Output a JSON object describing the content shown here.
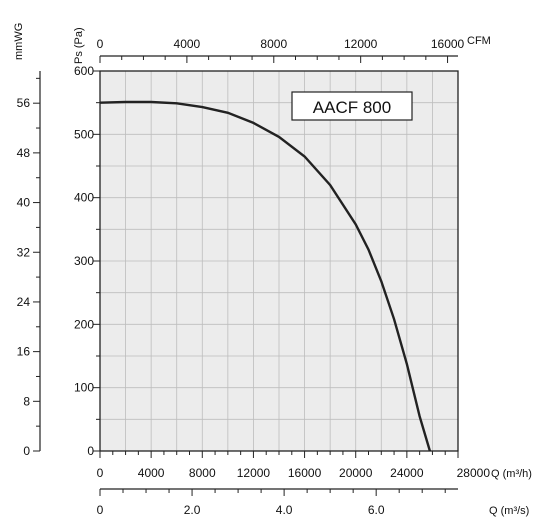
{
  "chart_data": {
    "type": "line",
    "model_label": "AACF 800",
    "series": [
      {
        "x": [
          0,
          2000,
          4000,
          6000,
          8000,
          10000,
          12000,
          14000,
          16000,
          18000,
          20000,
          21000,
          22000,
          23000,
          24000,
          25000,
          25800
        ],
        "y": [
          550,
          551,
          551,
          549,
          543,
          534,
          518,
          496,
          465,
          420,
          358,
          318,
          268,
          208,
          137,
          55,
          0
        ]
      }
    ],
    "x_axis": {
      "label": "Q (m³/h)",
      "range": [
        0,
        28000
      ],
      "ticks": [
        0,
        4000,
        8000,
        12000,
        16000,
        20000,
        24000,
        28000
      ]
    },
    "y_axis": {
      "label": "Ps (Pa)",
      "range": [
        0,
        600
      ],
      "ticks": [
        0,
        100,
        200,
        300,
        400,
        500,
        600
      ]
    },
    "top_axis": {
      "label": "CFM",
      "ticks": [
        0,
        4000,
        8000,
        12000,
        16000
      ],
      "cfm_per_m3h": 0.5886
    },
    "bottom_axis2": {
      "label": "Q (m³/s)",
      "ticks": [
        "0",
        "2.0",
        "4.0",
        "6.0"
      ],
      "tick_values": [
        0,
        2,
        4,
        6
      ],
      "m3h_per_m3s": 3600
    },
    "left_axis2": {
      "label": "mmWG",
      "ticks": [
        0,
        8,
        16,
        24,
        32,
        40,
        48,
        56
      ],
      "pa_per_mmwg": 9.80665
    },
    "grid": true,
    "colors": {
      "background": "#ececec",
      "grid": "#bdbdbd",
      "line": "#222222"
    }
  }
}
